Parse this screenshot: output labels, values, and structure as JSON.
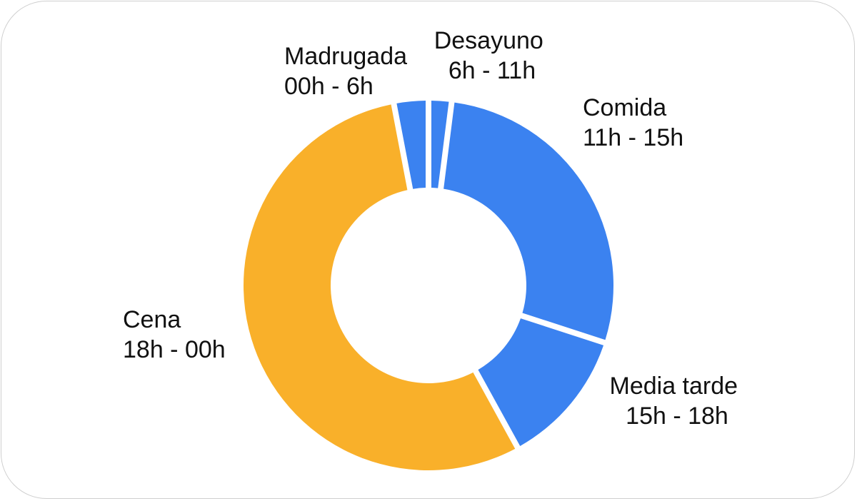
{
  "chart_data": {
    "type": "pie",
    "donut": true,
    "title": "",
    "categories": [
      "Desayuno",
      "Comida",
      "Media tarde",
      "Cena",
      "Madrugada"
    ],
    "ranges": [
      "6h - 11h",
      "11h - 15h",
      "15h - 18h",
      "18h - 00h",
      "00h - 6h"
    ],
    "values": [
      2,
      28,
      12,
      55,
      3
    ],
    "colors": [
      "#3b82f0",
      "#3b82f0",
      "#3b82f0",
      "#f9b02a",
      "#3b82f0"
    ],
    "legend": "none"
  }
}
